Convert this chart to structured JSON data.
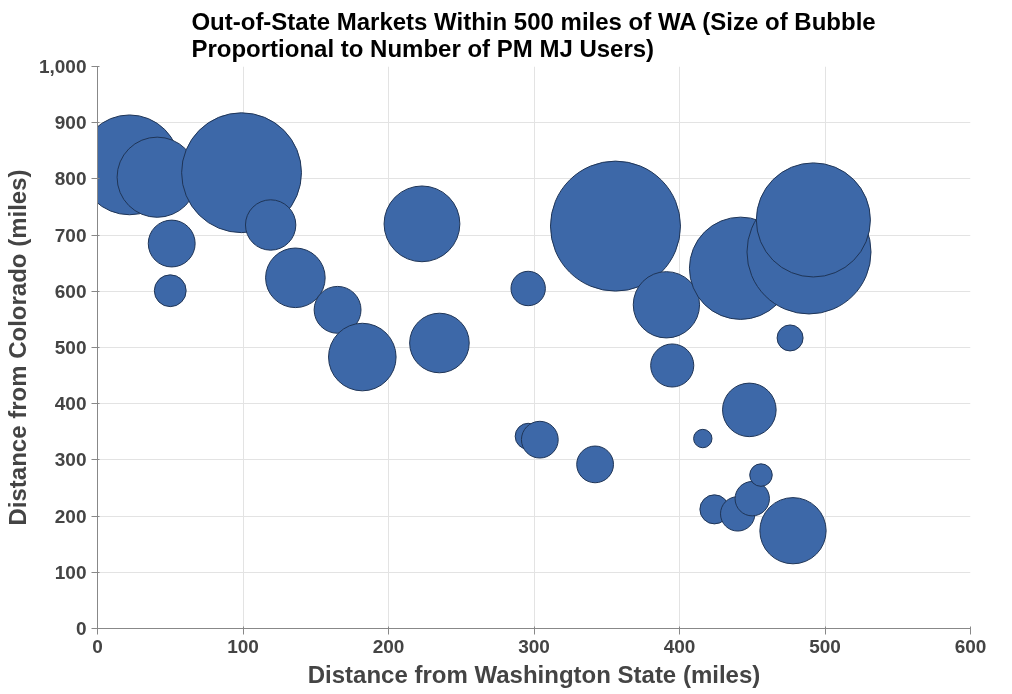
{
  "chart_data": {
    "type": "bubble",
    "title": "Out-of-State Markets Within 500 miles of WA (Size of Bubble Proportional to Number of PM MJ Users)",
    "xlabel": "Distance from Washington State (miles)",
    "ylabel": "Distance from Colorado (miles)",
    "x": [
      22,
      41,
      99,
      119,
      51,
      50,
      136,
      165,
      182,
      223,
      235,
      296,
      356,
      391,
      395,
      442,
      489,
      492,
      476,
      296,
      304,
      342,
      416,
      448,
      424,
      440,
      450,
      456,
      478
    ],
    "values": [
      825,
      803,
      811,
      718,
      685,
      601,
      624,
      567,
      483,
      720,
      508,
      605,
      716,
      576,
      468,
      641,
      670,
      727,
      517,
      342,
      336,
      292,
      338,
      389,
      212,
      204,
      231,
      273,
      174
    ],
    "sizes": [
      0.59,
      0.38,
      0.85,
      0.15,
      0.13,
      0.06,
      0.21,
      0.13,
      0.27,
      0.34,
      0.21,
      0.07,
      1,
      0.26,
      0.11,
      0.62,
      0.91,
      0.77,
      0.04,
      0.04,
      0.08,
      0.08,
      0.02,
      0.17,
      0.05,
      0.07,
      0.07,
      0.03,
      0.26
    ],
    "color": "#3d68a8",
    "xlim": [
      0,
      600
    ],
    "xticks": [
      0,
      100,
      200,
      300,
      400,
      500,
      600
    ],
    "ylim": [
      0,
      1000
    ],
    "yticks": [
      0,
      100,
      200,
      300,
      400,
      500,
      600,
      700,
      800,
      900,
      {
        "value": 1000,
        "label": "1,000"
      }
    ],
    "grid": true
  }
}
